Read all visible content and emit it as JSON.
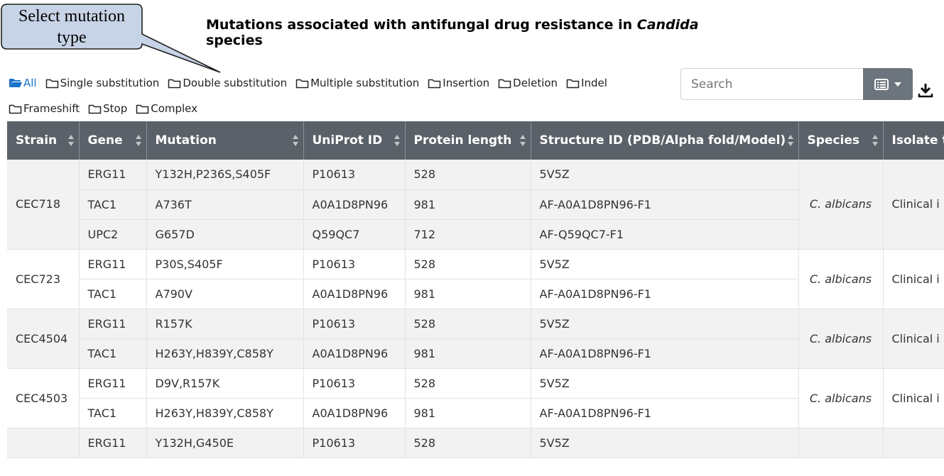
{
  "callout": {
    "text": "Select mutation type"
  },
  "title": {
    "prefix": "Mutations associated with antifungal drug resistance in ",
    "italic": "Candida",
    "suffix": " species"
  },
  "filters": [
    {
      "id": "all",
      "label": "All",
      "active": true
    },
    {
      "id": "single-substitution",
      "label": "Single substitution",
      "active": false
    },
    {
      "id": "double-substitution",
      "label": "Double substitution",
      "active": false
    },
    {
      "id": "multiple-substitution",
      "label": "Multiple substitution",
      "active": false
    },
    {
      "id": "insertion",
      "label": "Insertion",
      "active": false
    },
    {
      "id": "deletion",
      "label": "Deletion",
      "active": false
    },
    {
      "id": "indel",
      "label": "Indel",
      "active": false
    },
    {
      "id": "frameshift",
      "label": "Frameshift",
      "active": false
    },
    {
      "id": "stop",
      "label": "Stop",
      "active": false
    },
    {
      "id": "complex",
      "label": "Complex",
      "active": false
    }
  ],
  "search": {
    "placeholder": "Search",
    "value": ""
  },
  "toolbar": {
    "columns_icon": "list-icon",
    "caret_icon": "caret-down-icon",
    "download_icon": "download-icon"
  },
  "colors": {
    "header_bg": "#5a6169",
    "link": "#33649a",
    "active_filter": "#1a73c9",
    "stripe": "#f2f2f2",
    "button": "#6c757d"
  },
  "table": {
    "columns": [
      "Strain",
      "Gene",
      "Mutation",
      "UniProt ID",
      "Protein length",
      "Structure ID (PDB/Alpha fold/Model)",
      "Species",
      "Isolate t"
    ],
    "groups": [
      {
        "strain": "CEC718",
        "species": "C. albicans",
        "isolate": "Clinical i",
        "rows": [
          {
            "gene": "ERG11",
            "mutation": "Y132H,P236S,S405F",
            "uniprot": "P10613",
            "length": "528",
            "structure": "5V5Z"
          },
          {
            "gene": "TAC1",
            "mutation": "A736T",
            "uniprot": "A0A1D8PN96",
            "length": "981",
            "structure": "AF-A0A1D8PN96-F1"
          },
          {
            "gene": "UPC2",
            "mutation": "G657D",
            "uniprot": "Q59QC7",
            "length": "712",
            "structure": "AF-Q59QC7-F1"
          }
        ]
      },
      {
        "strain": "CEC723",
        "species": "C. albicans",
        "isolate": "Clinical i",
        "rows": [
          {
            "gene": "ERG11",
            "mutation": "P30S,S405F",
            "uniprot": "P10613",
            "length": "528",
            "structure": "5V5Z"
          },
          {
            "gene": "TAC1",
            "mutation": "A790V",
            "uniprot": "A0A1D8PN96",
            "length": "981",
            "structure": "AF-A0A1D8PN96-F1"
          }
        ]
      },
      {
        "strain": "CEC4504",
        "species": "C. albicans",
        "isolate": "Clinical i",
        "rows": [
          {
            "gene": "ERG11",
            "mutation": "R157K",
            "uniprot": "P10613",
            "length": "528",
            "structure": "5V5Z"
          },
          {
            "gene": "TAC1",
            "mutation": "H263Y,H839Y,C858Y",
            "uniprot": "A0A1D8PN96",
            "length": "981",
            "structure": "AF-A0A1D8PN96-F1"
          }
        ]
      },
      {
        "strain": "CEC4503",
        "species": "C. albicans",
        "isolate": "Clinical i",
        "rows": [
          {
            "gene": "ERG11",
            "mutation": "D9V,R157K",
            "uniprot": "P10613",
            "length": "528",
            "structure": "5V5Z"
          },
          {
            "gene": "TAC1",
            "mutation": "H263Y,H839Y,C858Y",
            "uniprot": "A0A1D8PN96",
            "length": "981",
            "structure": "AF-A0A1D8PN96-F1"
          }
        ]
      },
      {
        "strain": "",
        "species": "",
        "isolate": "",
        "rows": [
          {
            "gene": "ERG11",
            "mutation": "Y132H,G450E",
            "uniprot": "P10613",
            "length": "528",
            "structure": "5V5Z"
          }
        ]
      }
    ]
  }
}
